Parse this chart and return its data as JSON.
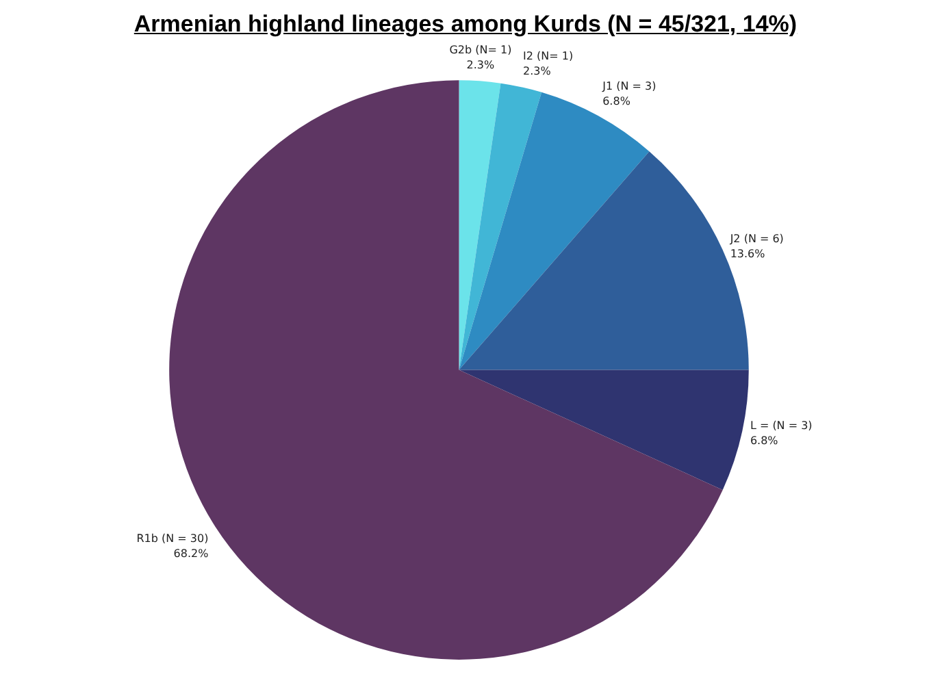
{
  "chart_data": {
    "type": "pie",
    "title": "Armenian highland lineages among Kurds (N = 45/321, 14%)",
    "categories": [
      "G2b (N= 1)",
      "I2 (N= 1)",
      "J1 (N = 3)",
      "J2 (N = 6)",
      "L = (N = 3)",
      "R1b (N = 30)"
    ],
    "values": [
      2.3,
      2.3,
      6.8,
      13.6,
      6.8,
      68.2
    ],
    "value_labels": [
      "2.3%",
      "2.3%",
      "6.8%",
      "13.6%",
      "6.8%",
      "68.2%"
    ],
    "colors": [
      "#6be3ea",
      "#41b6d6",
      "#2e8bc2",
      "#2f5e9a",
      "#2f3470",
      "#5e3663"
    ],
    "legend": false
  }
}
